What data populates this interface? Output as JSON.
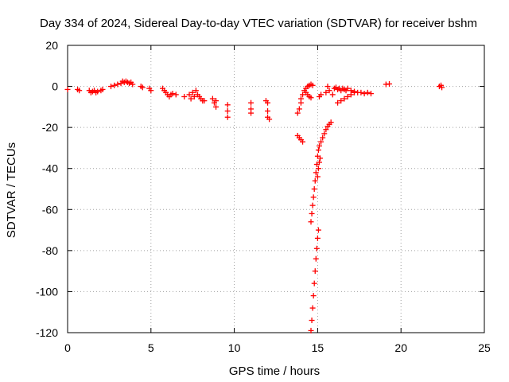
{
  "chart_data": {
    "type": "scatter",
    "title": "Day 334 of 2024, Sidereal Day-to-day VTEC variation (SDTVAR) for receiver bshm",
    "xlabel": "GPS time / hours",
    "ylabel": "SDTVAR / TECUs",
    "xlim": [
      0,
      25
    ],
    "ylim": [
      -120,
      20
    ],
    "xticks": [
      0,
      5,
      10,
      15,
      20,
      25
    ],
    "yticks": [
      20,
      0,
      -20,
      -40,
      -60,
      -80,
      -100,
      -120
    ],
    "grid": true,
    "marker": "+",
    "color": "#ff0000",
    "series": [
      {
        "name": "SDTVAR",
        "points": [
          [
            0.0,
            -1.5
          ],
          [
            0.6,
            -1.5
          ],
          [
            0.7,
            -2.0
          ],
          [
            1.3,
            -2.0
          ],
          [
            1.4,
            -3.0
          ],
          [
            1.5,
            -2.5
          ],
          [
            1.6,
            -2.0
          ],
          [
            1.7,
            -3.0
          ],
          [
            1.8,
            -2.5
          ],
          [
            2.0,
            -2.0
          ],
          [
            2.1,
            -1.5
          ],
          [
            2.6,
            0.0
          ],
          [
            2.8,
            0.5
          ],
          [
            3.0,
            1.0
          ],
          [
            3.2,
            1.5
          ],
          [
            3.3,
            2.5
          ],
          [
            3.4,
            2.0
          ],
          [
            3.5,
            2.5
          ],
          [
            3.6,
            2.0
          ],
          [
            3.7,
            1.5
          ],
          [
            3.8,
            2.0
          ],
          [
            3.9,
            1.0
          ],
          [
            4.4,
            0.0
          ],
          [
            4.5,
            -0.5
          ],
          [
            4.9,
            -1.0
          ],
          [
            5.0,
            -2.0
          ],
          [
            5.7,
            -1.0
          ],
          [
            5.8,
            -2.0
          ],
          [
            5.9,
            -3.0
          ],
          [
            6.0,
            -4.0
          ],
          [
            6.1,
            -5.0
          ],
          [
            6.2,
            -4.0
          ],
          [
            6.3,
            -3.5
          ],
          [
            6.5,
            -4.0
          ],
          [
            7.0,
            -5.0
          ],
          [
            7.3,
            -4.0
          ],
          [
            7.4,
            -6.0
          ],
          [
            7.5,
            -3.0
          ],
          [
            7.6,
            -5.0
          ],
          [
            7.7,
            -2.0
          ],
          [
            7.8,
            -4.0
          ],
          [
            7.9,
            -5.0
          ],
          [
            8.0,
            -6.0
          ],
          [
            8.1,
            -7.0
          ],
          [
            8.2,
            -7.0
          ],
          [
            8.7,
            -6.0
          ],
          [
            8.8,
            -8.0
          ],
          [
            8.9,
            -10.0
          ],
          [
            8.9,
            -7.0
          ],
          [
            9.6,
            -9.0
          ],
          [
            9.6,
            -12.0
          ],
          [
            9.6,
            -15.0
          ],
          [
            11.0,
            -8.0
          ],
          [
            11.0,
            -11.0
          ],
          [
            11.0,
            -13.0
          ],
          [
            11.9,
            -7.0
          ],
          [
            12.0,
            -8.0
          ],
          [
            12.0,
            -12.0
          ],
          [
            12.0,
            -15.0
          ],
          [
            12.1,
            -16.0
          ],
          [
            13.8,
            -13.0
          ],
          [
            13.9,
            -11.0
          ],
          [
            14.0,
            -8.0
          ],
          [
            14.0,
            -6.0
          ],
          [
            14.1,
            -4.0
          ],
          [
            14.2,
            -2.0
          ],
          [
            14.3,
            -1.0
          ],
          [
            14.4,
            0.0
          ],
          [
            14.5,
            0.5
          ],
          [
            14.6,
            1.0
          ],
          [
            14.7,
            0.5
          ],
          [
            14.3,
            -3.0
          ],
          [
            14.4,
            -4.0
          ],
          [
            14.5,
            -5.0
          ],
          [
            14.6,
            -5.5
          ],
          [
            13.8,
            -24.0
          ],
          [
            13.9,
            -25.0
          ],
          [
            14.0,
            -26.0
          ],
          [
            14.1,
            -27.0
          ],
          [
            14.6,
            -66.0
          ],
          [
            14.65,
            -62.0
          ],
          [
            14.7,
            -58.0
          ],
          [
            14.75,
            -54.0
          ],
          [
            14.8,
            -50.0
          ],
          [
            14.85,
            -46.0
          ],
          [
            14.9,
            -42.0
          ],
          [
            14.95,
            -38.0
          ],
          [
            15.0,
            -34.0
          ],
          [
            15.05,
            -31.0
          ],
          [
            15.1,
            -29.0
          ],
          [
            15.2,
            -27.0
          ],
          [
            15.3,
            -25.0
          ],
          [
            15.4,
            -23.0
          ],
          [
            15.5,
            -21.0
          ],
          [
            15.6,
            -19.5
          ],
          [
            15.7,
            -18.5
          ],
          [
            15.8,
            -17.5
          ],
          [
            14.6,
            -119.0
          ],
          [
            14.65,
            -114.0
          ],
          [
            14.7,
            -108.0
          ],
          [
            14.75,
            -102.0
          ],
          [
            14.8,
            -96.0
          ],
          [
            14.85,
            -90.0
          ],
          [
            14.9,
            -84.0
          ],
          [
            14.95,
            -79.0
          ],
          [
            15.0,
            -74.0
          ],
          [
            15.05,
            -70.0
          ],
          [
            15.0,
            -44.0
          ],
          [
            15.05,
            -40.0
          ],
          [
            15.1,
            -37.0
          ],
          [
            15.15,
            -35.0
          ],
          [
            15.1,
            -5.0
          ],
          [
            15.2,
            -4.0
          ],
          [
            15.5,
            -3.0
          ],
          [
            15.6,
            0.0
          ],
          [
            15.7,
            -2.0
          ],
          [
            15.9,
            -4.0
          ],
          [
            16.0,
            -1.0
          ],
          [
            16.1,
            -0.5
          ],
          [
            16.2,
            -1.5
          ],
          [
            16.3,
            -1.0
          ],
          [
            16.4,
            -2.0
          ],
          [
            16.5,
            -1.0
          ],
          [
            16.6,
            -1.5
          ],
          [
            16.7,
            -2.0
          ],
          [
            16.8,
            -1.0
          ],
          [
            17.0,
            -2.0
          ],
          [
            17.2,
            -2.5
          ],
          [
            17.4,
            -3.0
          ],
          [
            17.6,
            -3.0
          ],
          [
            17.8,
            -3.5
          ],
          [
            18.0,
            -3.0
          ],
          [
            18.2,
            -3.5
          ],
          [
            16.2,
            -8.0
          ],
          [
            16.4,
            -7.0
          ],
          [
            16.6,
            -6.0
          ],
          [
            16.8,
            -5.0
          ],
          [
            17.0,
            -4.0
          ],
          [
            17.2,
            -3.0
          ],
          [
            19.1,
            1.0
          ],
          [
            19.3,
            1.2
          ],
          [
            22.3,
            0.0
          ],
          [
            22.4,
            0.5
          ],
          [
            22.45,
            -0.5
          ]
        ]
      }
    ]
  }
}
